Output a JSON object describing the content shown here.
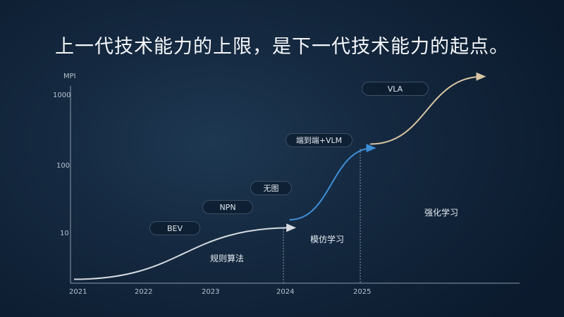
{
  "title": "上一代技术能力的上限，是下一代技术能力的起点。",
  "chart_data": {
    "type": "line",
    "title": "上一代技术能力的上限，是下一代技术能力的起点。",
    "ylabel": "MPI",
    "xlabel": "",
    "yscale": "log",
    "ylim": [
      1,
      2000
    ],
    "y_ticks": [
      "1000",
      "100",
      "10"
    ],
    "x_ticks": [
      "2021",
      "2022",
      "2023",
      "2024",
      "2025"
    ],
    "grid": false,
    "series": [
      {
        "phase": "规则算法",
        "color": "#d6dbe2",
        "points": [
          [
            2021.0,
            2.2
          ],
          [
            2024.13,
            12.3
          ]
        ]
      },
      {
        "phase": "模仿学习",
        "color": "#3d8fd8",
        "points": [
          [
            2024.08,
            16
          ],
          [
            2025.17,
            175
          ]
        ]
      },
      {
        "phase": "强化学习",
        "color": "#d9c6a3",
        "points": [
          [
            2025.13,
            200
          ],
          [
            2026.6,
            1900
          ]
        ]
      }
    ],
    "milestones": [
      "BEV",
      "NPN",
      "无图",
      "端到端+VLM",
      "VLA"
    ],
    "dividers": [
      "2024",
      "2025"
    ]
  }
}
